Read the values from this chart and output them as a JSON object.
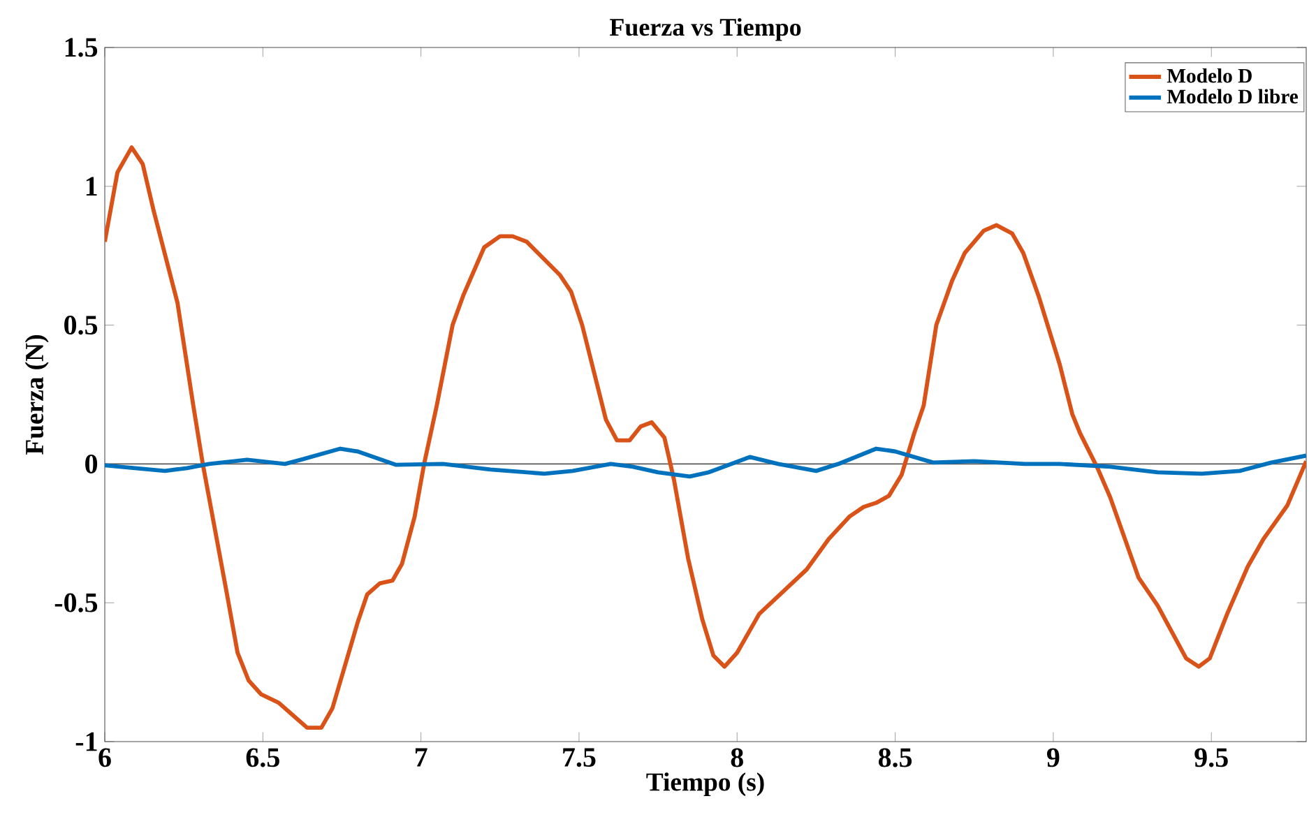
{
  "chart_data": {
    "type": "line",
    "title": "Fuerza vs Tiempo",
    "xlabel": "Tiempo (s)",
    "ylabel": "Fuerza (N)",
    "xlim": [
      6,
      9.8
    ],
    "ylim": [
      -1,
      1.5
    ],
    "xticks": [
      6,
      6.5,
      7,
      7.5,
      8,
      8.5,
      9,
      9.5
    ],
    "yticks": [
      -1,
      -0.5,
      0,
      0.5,
      1,
      1.5
    ],
    "grid": false,
    "legend": "top right",
    "marker": "none",
    "line_style": "solid",
    "ref_lines": [
      {
        "axis": "y",
        "value": 0,
        "color": "#595959"
      }
    ],
    "series": [
      {
        "name": "Modelo D",
        "color": "#d95319",
        "x": [
          6,
          6.04,
          6.085,
          6.12,
          6.155,
          6.23,
          6.28,
          6.31,
          6.385,
          6.42,
          6.455,
          6.495,
          6.55,
          6.6,
          6.64,
          6.685,
          6.72,
          6.8,
          6.83,
          6.87,
          6.91,
          6.94,
          6.98,
          7.01,
          7.05,
          7.1,
          7.135,
          7.2,
          7.25,
          7.29,
          7.335,
          7.44,
          7.475,
          7.51,
          7.585,
          7.62,
          7.66,
          7.695,
          7.73,
          7.77,
          7.8,
          7.845,
          7.89,
          7.925,
          7.96,
          8.0,
          8.07,
          8.145,
          8.22,
          8.29,
          8.355,
          8.4,
          8.44,
          8.48,
          8.52,
          8.56,
          8.59,
          8.63,
          8.68,
          8.72,
          8.78,
          8.82,
          8.87,
          8.905,
          8.955,
          9.02,
          9.06,
          9.085,
          9.14,
          9.18,
          9.27,
          9.33,
          9.42,
          9.46,
          9.495,
          9.55,
          9.615,
          9.665,
          9.74,
          9.8
        ],
        "values": [
          0.8,
          1.05,
          1.14,
          1.08,
          0.91,
          0.58,
          0.21,
          0.0,
          -0.46,
          -0.68,
          -0.78,
          -0.83,
          -0.86,
          -0.91,
          -0.95,
          -0.95,
          -0.88,
          -0.57,
          -0.47,
          -0.43,
          -0.42,
          -0.36,
          -0.19,
          0.0,
          0.21,
          0.5,
          0.61,
          0.78,
          0.82,
          0.82,
          0.8,
          0.68,
          0.62,
          0.5,
          0.16,
          0.085,
          0.085,
          0.135,
          0.15,
          0.095,
          -0.055,
          -0.34,
          -0.56,
          -0.69,
          -0.73,
          -0.68,
          -0.54,
          -0.46,
          -0.38,
          -0.27,
          -0.19,
          -0.155,
          -0.14,
          -0.115,
          -0.04,
          0.11,
          0.21,
          0.5,
          0.66,
          0.76,
          0.84,
          0.86,
          0.83,
          0.76,
          0.6,
          0.36,
          0.18,
          0.11,
          -0.015,
          -0.12,
          -0.41,
          -0.51,
          -0.7,
          -0.73,
          -0.7,
          -0.54,
          -0.37,
          -0.27,
          -0.15,
          0.01
        ]
      },
      {
        "name": "Modelo D libre",
        "color": "#0072bd",
        "x": [
          6,
          6.19,
          6.26,
          6.33,
          6.45,
          6.57,
          6.62,
          6.745,
          6.8,
          6.92,
          7.07,
          7.22,
          7.39,
          7.48,
          7.6,
          7.67,
          7.75,
          7.85,
          7.91,
          8.04,
          8.13,
          8.25,
          8.32,
          8.44,
          8.5,
          8.62,
          8.75,
          8.91,
          9.02,
          9.18,
          9.33,
          9.47,
          9.59,
          9.69,
          9.8
        ],
        "values": [
          -0.005,
          -0.025,
          -0.015,
          0.0,
          0.015,
          0.0,
          0.015,
          0.055,
          0.045,
          -0.003,
          0.0,
          -0.02,
          -0.035,
          -0.025,
          0.0,
          -0.01,
          -0.03,
          -0.045,
          -0.03,
          0.025,
          0.0,
          -0.025,
          0.0,
          0.055,
          0.045,
          0.005,
          0.01,
          0.0,
          0.0,
          -0.01,
          -0.03,
          -0.035,
          -0.025,
          0.005,
          0.03
        ]
      }
    ]
  }
}
